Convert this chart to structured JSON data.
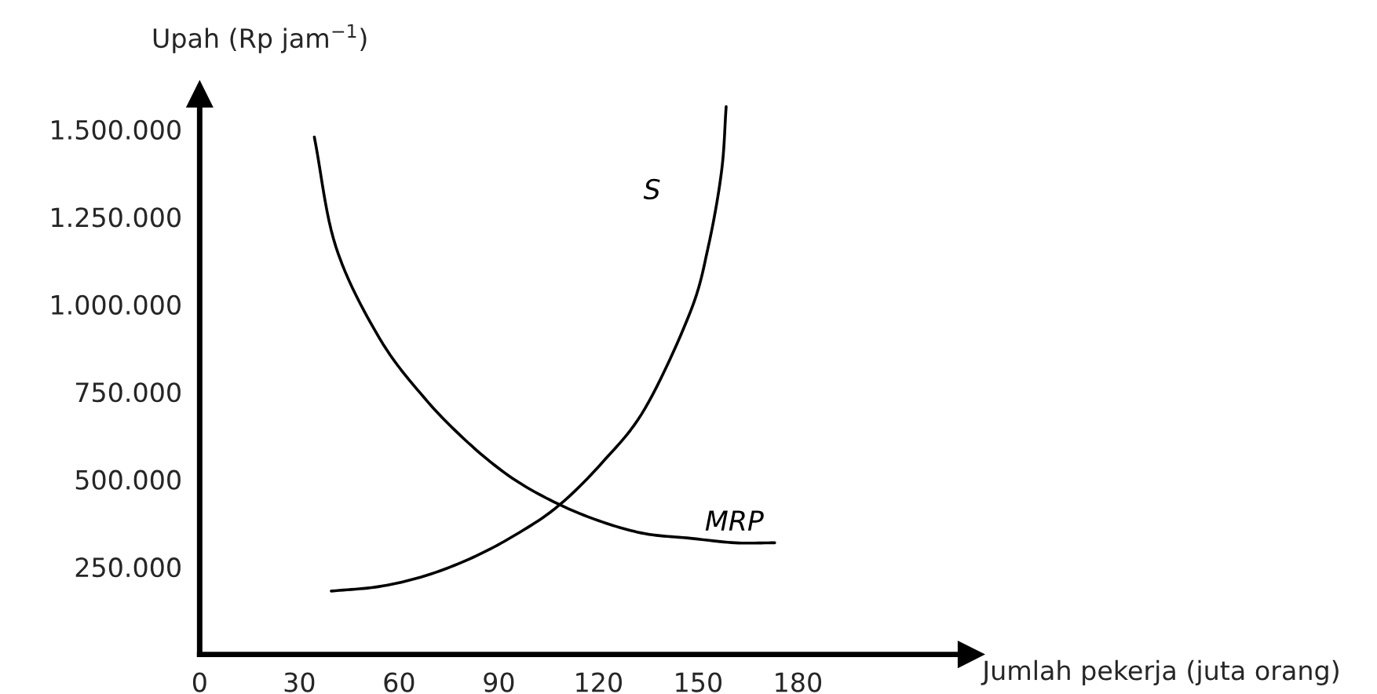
{
  "chart_data": {
    "type": "line",
    "xlabel": "Jumlah pekerja (juta orang)",
    "ylabel": "Upah (Rp jam$^{−1}$)",
    "series": [
      {
        "name": "MRP",
        "color": "#000000",
        "x": [
          34.5,
          41,
          54,
          67.6,
          81,
          94,
          107.6,
          121,
          134,
          147.6,
          161,
          173
        ],
        "values": [
          1478000,
          1164000,
          905000,
          733000,
          603000,
          504000,
          431000,
          379000,
          345000,
          332000,
          319000,
          319000
        ]
      },
      {
        "name": "S",
        "color": "#000000",
        "x": [
          39.6,
          54,
          67.6,
          81,
          94,
          107.6,
          121,
          134,
          147.6,
          153,
          157,
          158.4
        ],
        "values": [
          181000,
          194000,
          224000,
          272000,
          336000,
          422000,
          547000,
          703000,
          978000,
          1164000,
          1379000,
          1565000
        ]
      }
    ],
    "xlim": [
      0,
      232
    ],
    "ylim": [
      0,
      1600000
    ],
    "xticks": [
      0,
      30,
      60,
      90,
      120,
      150,
      180
    ],
    "yticks": [
      {
        "value": 250000,
        "label": "250.000"
      },
      {
        "value": 500000,
        "label": "500.000"
      },
      {
        "value": 750000,
        "label": "750.000"
      },
      {
        "value": 1000000,
        "label": "1.000.000"
      },
      {
        "value": 1250000,
        "label": "1.250.000"
      },
      {
        "value": 1500000,
        "label": "1.500.000"
      }
    ],
    "grid": false,
    "legend": false,
    "marker": "none",
    "line_style": "solid"
  }
}
